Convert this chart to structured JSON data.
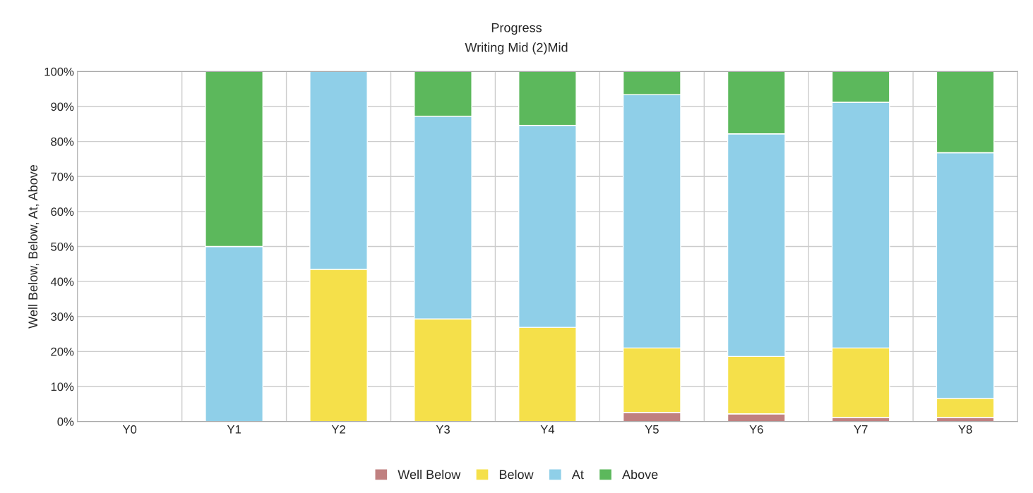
{
  "chart_data": {
    "type": "bar",
    "title": "Progress",
    "subtitle": "Writing Mid (2)Mid",
    "ylabel": "Well Below, Below, At, Above",
    "categories": [
      "Y0",
      "Y1",
      "Y2",
      "Y3",
      "Y4",
      "Y5",
      "Y6",
      "Y7",
      "Y8"
    ],
    "stacked": true,
    "series": [
      {
        "name": "Well Below",
        "color": "#c08080",
        "values": [
          null,
          0,
          0,
          0,
          0,
          2.6,
          2.2,
          1.2,
          1.2
        ]
      },
      {
        "name": "Below",
        "color": "#f5e04a",
        "values": [
          null,
          0,
          43.5,
          29.3,
          26.9,
          18.4,
          16.4,
          19.8,
          5.4
        ]
      },
      {
        "name": "At",
        "color": "#8fcfe8",
        "values": [
          null,
          50,
          56.5,
          57.9,
          57.7,
          72.4,
          63.6,
          70.2,
          70.2
        ]
      },
      {
        "name": "Above",
        "color": "#5cb85c",
        "values": [
          null,
          50,
          0,
          12.8,
          15.4,
          6.6,
          17.8,
          8.8,
          23.2
        ]
      }
    ],
    "ylim": [
      0,
      100
    ],
    "yticks": [
      {
        "value": 0,
        "label": "0%"
      },
      {
        "value": 10,
        "label": "10%"
      },
      {
        "value": 20,
        "label": "20%"
      },
      {
        "value": 30,
        "label": "30%"
      },
      {
        "value": 40,
        "label": "40%"
      },
      {
        "value": 50,
        "label": "50%"
      },
      {
        "value": 60,
        "label": "60%"
      },
      {
        "value": 70,
        "label": "70%"
      },
      {
        "value": 80,
        "label": "80%"
      },
      {
        "value": 90,
        "label": "90%"
      },
      {
        "value": 100,
        "label": "100%"
      }
    ],
    "grid": true,
    "legend": "bottom"
  }
}
